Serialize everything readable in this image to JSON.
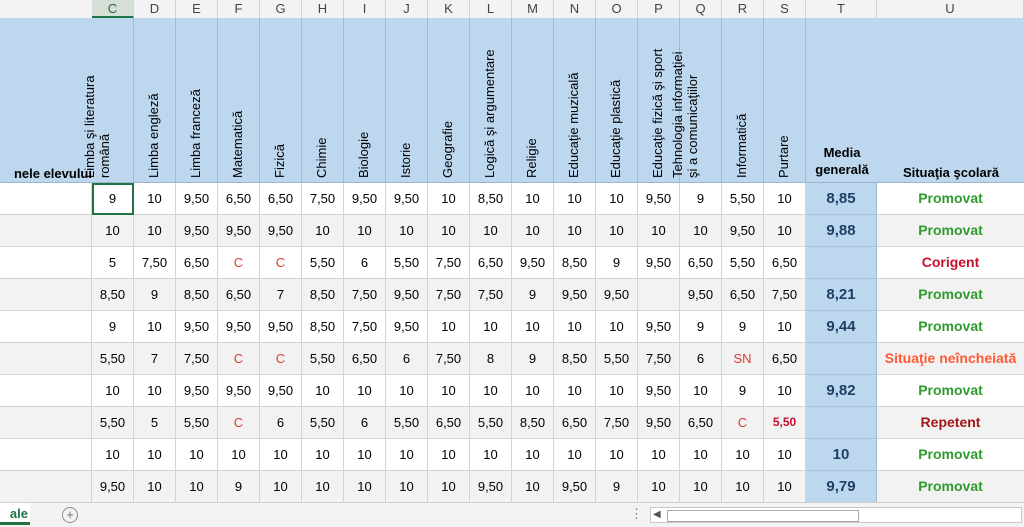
{
  "columns": [
    "C",
    "D",
    "E",
    "F",
    "G",
    "H",
    "I",
    "J",
    "K",
    "L",
    "M",
    "N",
    "O",
    "P",
    "Q",
    "R",
    "S",
    "T",
    "U"
  ],
  "active_column": "C",
  "header": {
    "name_label": "nele elevului",
    "subjects": [
      "Limba şi literatura\nromână",
      "Limba engleză",
      "Limba franceză",
      "Matematică",
      "Fizică",
      "Chimie",
      "Biologie",
      "Istorie",
      "Geografie",
      "Logică şi argumentare",
      "Religie",
      "Educaţie muzicală",
      "Educaţie plastică",
      "Educaţie fizică şi sport",
      "Tehnologia informaţiei\nşi a comunicaţiilor",
      "Informatică",
      "Purtare"
    ],
    "average_label": "Media\ngenerală",
    "status_label": "Situaţia şcolară"
  },
  "rows": [
    {
      "grades": [
        "9",
        "10",
        "9,50",
        "6,50",
        "6,50",
        "7,50",
        "9,50",
        "9,50",
        "10",
        "8,50",
        "10",
        "10",
        "10",
        "9,50",
        "9",
        "5,50",
        "10"
      ],
      "average": "8,85",
      "status": "Promovat"
    },
    {
      "grades": [
        "10",
        "10",
        "9,50",
        "9,50",
        "9,50",
        "10",
        "10",
        "10",
        "10",
        "10",
        "10",
        "10",
        "10",
        "10",
        "10",
        "9,50",
        "10"
      ],
      "average": "9,88",
      "status": "Promovat"
    },
    {
      "grades": [
        "5",
        "7,50",
        "6,50",
        "C",
        "C",
        "5,50",
        "6",
        "5,50",
        "7,50",
        "6,50",
        "9,50",
        "8,50",
        "9",
        "9,50",
        "6,50",
        "5,50",
        "6,50"
      ],
      "average": "",
      "status": "Corigent"
    },
    {
      "grades": [
        "8,50",
        "9",
        "8,50",
        "6,50",
        "7",
        "8,50",
        "7,50",
        "9,50",
        "7,50",
        "7,50",
        "9",
        "9,50",
        "9,50",
        "",
        "9,50",
        "6,50",
        "7,50"
      ],
      "average": "8,21",
      "status": "Promovat"
    },
    {
      "grades": [
        "9",
        "10",
        "9,50",
        "9,50",
        "9,50",
        "8,50",
        "7,50",
        "9,50",
        "10",
        "10",
        "10",
        "10",
        "10",
        "9,50",
        "9",
        "9",
        "10"
      ],
      "average": "9,44",
      "status": "Promovat"
    },
    {
      "grades": [
        "5,50",
        "7",
        "7,50",
        "C",
        "C",
        "5,50",
        "6,50",
        "6",
        "7,50",
        "8",
        "9",
        "8,50",
        "5,50",
        "7,50",
        "6",
        "SN",
        "6,50"
      ],
      "average": "",
      "status": "Situaţie neîncheiată"
    },
    {
      "grades": [
        "10",
        "10",
        "9,50",
        "9,50",
        "9,50",
        "10",
        "10",
        "10",
        "10",
        "10",
        "10",
        "10",
        "10",
        "9,50",
        "10",
        "9",
        "10"
      ],
      "average": "9,82",
      "status": "Promovat"
    },
    {
      "grades": [
        "5,50",
        "5",
        "5,50",
        "C",
        "6",
        "5,50",
        "6",
        "5,50",
        "6,50",
        "5,50",
        "8,50",
        "6,50",
        "7,50",
        "9,50",
        "6,50",
        "C",
        "5,50"
      ],
      "average": "",
      "status": "Repetent"
    },
    {
      "grades": [
        "10",
        "10",
        "10",
        "10",
        "10",
        "10",
        "10",
        "10",
        "10",
        "10",
        "10",
        "10",
        "10",
        "10",
        "10",
        "10",
        "10"
      ],
      "average": "10",
      "status": "Promovat"
    },
    {
      "grades": [
        "9,50",
        "10",
        "10",
        "9",
        "10",
        "10",
        "10",
        "10",
        "10",
        "9,50",
        "10",
        "9,50",
        "9",
        "10",
        "10",
        "10",
        "10"
      ],
      "average": "9,79",
      "status": "Promovat"
    }
  ],
  "colors": {
    "header_bg": "#bdd7ee",
    "promovat": "#2e9b2e",
    "corigent": "#c8102e",
    "neincheiata": "#ff5a33",
    "repetent": "#a31515",
    "failing_grade": "#e03c31",
    "excel_green": "#217346"
  },
  "footer": {
    "sheet_tab": "ale",
    "add_sheet_icon": "plus-circle-icon",
    "dots": "⋮",
    "scroll_left_icon": "triangle-left-icon"
  }
}
